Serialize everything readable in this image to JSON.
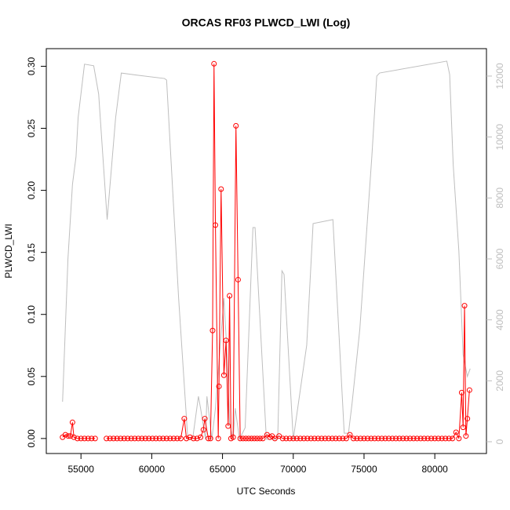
{
  "chart_data": {
    "type": "line",
    "title": "ORCAS RF03 PLWCD_LWI (Log)",
    "x_label": "UTC Seconds",
    "y_label": "PLWCD_LWI",
    "xlim": [
      52550,
      83650
    ],
    "ylim": [
      -0.0121,
      0.3142
    ],
    "y2lim": [
      -386,
      12900
    ],
    "xticks": [
      55000,
      60000,
      65000,
      70000,
      75000,
      80000
    ],
    "yticks": [
      {
        "value": 0,
        "label": "0.00"
      },
      0.05,
      {
        "value": 0.1,
        "label": "0.10"
      },
      0.15,
      {
        "value": 0.2,
        "label": "0.20"
      },
      0.25,
      {
        "value": 0.3,
        "label": "0.30"
      }
    ],
    "y2ticks": [
      0,
      2000,
      4000,
      6000,
      8000,
      10000,
      12000
    ],
    "series": [
      {
        "color": "#ff0000",
        "axis": "y",
        "markers": true,
        "x": [
          53700,
          53900,
          54100,
          54250,
          54400,
          54500,
          54750,
          55000,
          55250,
          55500,
          55750,
          56000,
          56400,
          56800,
          57050,
          57300,
          57550,
          57800,
          58050,
          58300,
          58550,
          58800,
          59050,
          59300,
          59550,
          59800,
          60050,
          60300,
          60550,
          60800,
          61050,
          61300,
          61550,
          61800,
          62050,
          62300,
          62450,
          62700,
          62950,
          63200,
          63450,
          63650,
          63750,
          64000,
          64150,
          64300,
          64400,
          64500,
          64700,
          64750,
          64900,
          65100,
          65250,
          65400,
          65500,
          65600,
          65750,
          65950,
          66100,
          66250,
          66450,
          66650,
          66850,
          67050,
          67250,
          67450,
          67650,
          67850,
          68150,
          68350,
          68500,
          68700,
          69000,
          69250,
          69500,
          69750,
          70000,
          70250,
          70500,
          70750,
          71000,
          71250,
          71500,
          71750,
          72000,
          72250,
          72500,
          72750,
          73000,
          73250,
          73500,
          73750,
          74000,
          74250,
          74500,
          74750,
          75000,
          75250,
          75500,
          75750,
          76000,
          76250,
          76500,
          76750,
          77000,
          77250,
          77500,
          77750,
          78000,
          78250,
          78500,
          78750,
          79000,
          79250,
          79500,
          79750,
          80000,
          80250,
          80500,
          80750,
          81000,
          81250,
          81500,
          81700,
          81900,
          82000,
          82100,
          82200,
          82300,
          82450
        ],
        "values": [
          0.001,
          0.003,
          0.002,
          0.002,
          0.013,
          0.001,
          0,
          0,
          0,
          0,
          0,
          0,
          null,
          0,
          0,
          0,
          0,
          0,
          0,
          0,
          0,
          0,
          0,
          0,
          0,
          0,
          0,
          0,
          0,
          0,
          0,
          0,
          0,
          0,
          0,
          0.016,
          0,
          0.001,
          0,
          0,
          0.001,
          0.007,
          0.016,
          0,
          0,
          0.087,
          0.302,
          0.172,
          0,
          0.042,
          0.201,
          0.051,
          0.079,
          0.01,
          0.115,
          0,
          0.001,
          0.252,
          0.128,
          0,
          0,
          0,
          0,
          0,
          0,
          0,
          0,
          0,
          0.003,
          0.001,
          0.002,
          0,
          0.002,
          0,
          0,
          0,
          0,
          0,
          0,
          0,
          0,
          0,
          0,
          0,
          0,
          0,
          0,
          0,
          0,
          0,
          0,
          0,
          0.003,
          0,
          0,
          0,
          0,
          0,
          0,
          0,
          0,
          0,
          0,
          0,
          0,
          0,
          0,
          0,
          0,
          0,
          0,
          0,
          0,
          0,
          0,
          0,
          0,
          0,
          0,
          0,
          0,
          0,
          0.005,
          0,
          0.037,
          0.009,
          0.107,
          0.002,
          0.016,
          0.039
        ]
      },
      {
        "color": "#bebebe",
        "axis": "y2",
        "markers": false,
        "x": [
          53700,
          54080,
          54400,
          54650,
          54800,
          55250,
          55900,
          56250,
          56850,
          57450,
          57850,
          58950,
          60900,
          61050,
          61900,
          62550,
          62900,
          63300,
          63450,
          63800,
          63900,
          64250,
          64500,
          65100,
          65350,
          65500,
          65750,
          65900,
          66200,
          66600,
          67150,
          67300,
          68100,
          68900,
          69200,
          69350,
          70000,
          70950,
          71400,
          72800,
          73600,
          73900,
          74150,
          74700,
          75550,
          75900,
          76100,
          80850,
          81050,
          81300,
          81700,
          82000,
          82300,
          82500
        ],
        "values": [
          1313,
          6000,
          8450,
          9350,
          10640,
          12390,
          12340,
          11410,
          7290,
          10640,
          12100,
          12030,
          11920,
          11870,
          4710,
          80,
          130,
          1490,
          1100,
          80,
          1490,
          80,
          1100,
          4710,
          2650,
          590,
          80,
          1100,
          80,
          460,
          7030,
          7030,
          80,
          80,
          5610,
          5490,
          80,
          3170,
          7160,
          7290,
          280,
          280,
          1240,
          3680,
          9350,
          12000,
          12100,
          12490,
          12050,
          9090,
          6260,
          2860,
          2140,
          2400
        ]
      }
    ]
  }
}
